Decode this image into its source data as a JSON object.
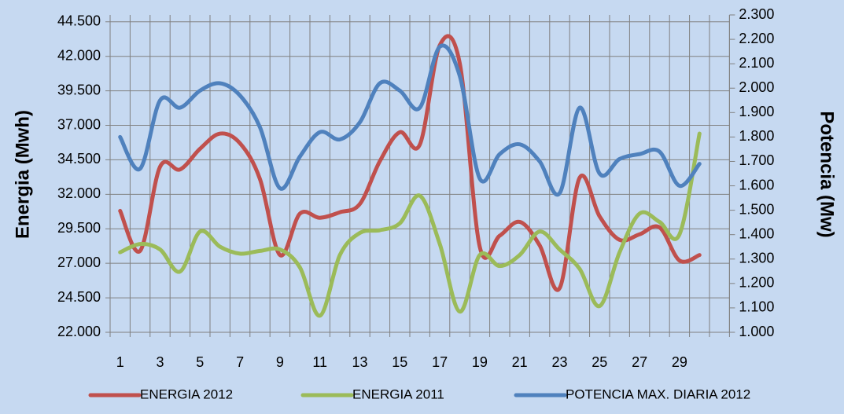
{
  "chart_data": {
    "type": "line",
    "y_label": "Energia (Mwh)",
    "y2_label": "Potencia (Mw)",
    "categories": [
      "1",
      null,
      "3",
      null,
      "5",
      null,
      "7",
      null,
      "9",
      null,
      "11",
      null,
      "13",
      null,
      "15",
      null,
      "17",
      null,
      "19",
      null,
      "21",
      null,
      "23",
      null,
      "25",
      null,
      "27",
      null,
      "29",
      null,
      null
    ],
    "ylim": [
      22000,
      45000
    ],
    "yticks": [
      {
        "value": 22000,
        "label": "22.000"
      },
      {
        "value": 24500,
        "label": "24.500"
      },
      {
        "value": 27000,
        "label": "27.000"
      },
      {
        "value": 29500,
        "label": "29.500"
      },
      {
        "value": 32000,
        "label": "32.000"
      },
      {
        "value": 34500,
        "label": "34.500"
      },
      {
        "value": 37000,
        "label": "37.000"
      },
      {
        "value": 39500,
        "label": "39.500"
      },
      {
        "value": 42000,
        "label": "42.000"
      },
      {
        "value": 44500,
        "label": "44.500"
      }
    ],
    "y2lim": [
      1000,
      2300
    ],
    "y2ticks": [
      {
        "value": 1000,
        "label": "1.000"
      },
      {
        "value": 1100,
        "label": "1.100"
      },
      {
        "value": 1200,
        "label": "1.200"
      },
      {
        "value": 1300,
        "label": "1.300"
      },
      {
        "value": 1400,
        "label": "1.400"
      },
      {
        "value": 1500,
        "label": "1.500"
      },
      {
        "value": 1600,
        "label": "1.600"
      },
      {
        "value": 1700,
        "label": "1.700"
      },
      {
        "value": 1800,
        "label": "1.800"
      },
      {
        "value": 1900,
        "label": "1.900"
      },
      {
        "value": 2000,
        "label": "2.000"
      },
      {
        "value": 2100,
        "label": "2.100"
      },
      {
        "value": 2200,
        "label": "2.200"
      },
      {
        "value": 2300,
        "label": "2.300"
      }
    ],
    "grid": true,
    "legend": "bottom",
    "series": [
      {
        "name": "ENERGIA 2012",
        "color": "#c0504d",
        "values": [
          30800,
          27900,
          34000,
          33800,
          35300,
          36400,
          35700,
          33100,
          27600,
          30600,
          30300,
          30700,
          31300,
          34400,
          36500,
          35600,
          42800,
          41500,
          28200,
          29000,
          30000,
          28300,
          25200,
          33200,
          30400,
          28700,
          29100,
          29600,
          27200,
          27600,
          null
        ]
      },
      {
        "name": "ENERGIA 2011",
        "color": "#9bbb59",
        "values": [
          27800,
          28400,
          28000,
          26400,
          29300,
          28200,
          27700,
          27900,
          28000,
          26700,
          23200,
          27600,
          29200,
          29400,
          29900,
          31900,
          28400,
          23500,
          27600,
          26800,
          27600,
          29300,
          28000,
          26600,
          23900,
          27800,
          30600,
          30000,
          29100,
          36400,
          null
        ]
      },
      {
        "name": "POTENCIA MAX. DIARIA 2012",
        "color": "#4f81bd",
        "axis": "y2",
        "values": [
          1800,
          1670,
          1950,
          1920,
          1990,
          2020,
          1970,
          1840,
          1590,
          1720,
          1820,
          1790,
          1860,
          2020,
          1990,
          1920,
          2170,
          2050,
          1630,
          1730,
          1770,
          1700,
          1570,
          1920,
          1650,
          1710,
          1730,
          1740,
          1600,
          1690,
          null
        ]
      }
    ]
  }
}
